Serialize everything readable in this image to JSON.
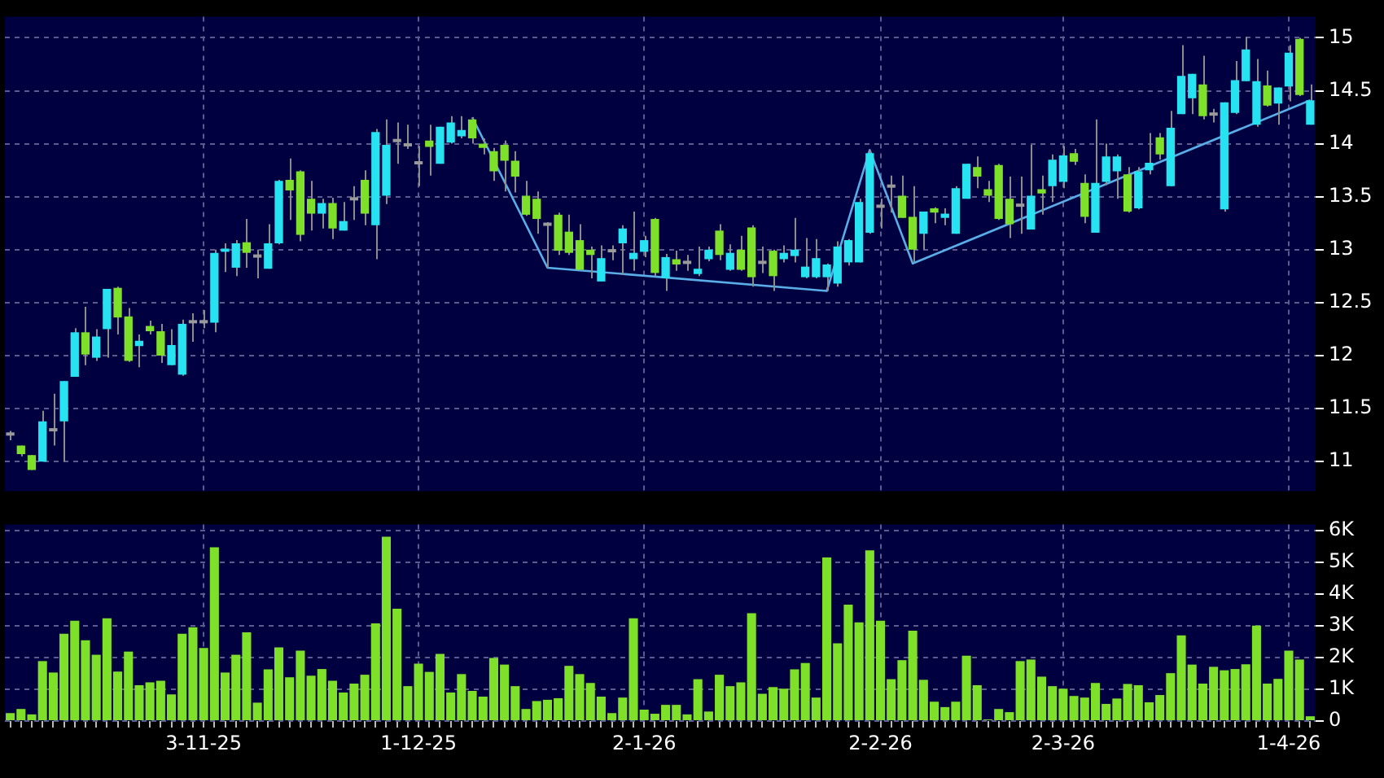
{
  "chart_data": [
    {
      "type": "candlestick",
      "categories": [
        null,
        null,
        null,
        null,
        null,
        null,
        null,
        null,
        null,
        null,
        null,
        null,
        null,
        null,
        null,
        null,
        null,
        null,
        null,
        null,
        null,
        null,
        null,
        null,
        null,
        null,
        null,
        null,
        null,
        null,
        null,
        null,
        null,
        null,
        null,
        null,
        null,
        null,
        null,
        null,
        null,
        null,
        null,
        null,
        null,
        null,
        null,
        null,
        null,
        null,
        null,
        null,
        null,
        null,
        null,
        null,
        null,
        null,
        null,
        null,
        null,
        null,
        null,
        null,
        null,
        null,
        null,
        null,
        null,
        null,
        null,
        null,
        null,
        null,
        null,
        null,
        null,
        null,
        null,
        null,
        null,
        null,
        null,
        null,
        null,
        null,
        null,
        null,
        null,
        null,
        null,
        null,
        null,
        null,
        null,
        null,
        null,
        null,
        null,
        null,
        null,
        null,
        null,
        null,
        null,
        null,
        null,
        null,
        null,
        null,
        null,
        null,
        null,
        null,
        null,
        null,
        null,
        null,
        null,
        null,
        null,
        null
      ],
      "ohlc": [
        [
          11.26,
          11.29,
          11.2,
          11.26
        ],
        [
          11.15,
          11.15,
          11.05,
          11.07
        ],
        [
          11.06,
          11.06,
          10.92,
          10.92
        ],
        [
          11.0,
          11.48,
          11.0,
          11.38
        ],
        [
          11.3,
          11.64,
          11.15,
          11.3
        ],
        [
          11.38,
          11.76,
          11.0,
          11.76
        ],
        [
          11.8,
          12.26,
          11.8,
          12.22
        ],
        [
          12.22,
          12.46,
          11.91,
          12.01
        ],
        [
          11.98,
          12.25,
          11.95,
          12.18
        ],
        [
          12.25,
          12.63,
          11.98,
          12.63
        ],
        [
          12.64,
          12.65,
          12.2,
          12.36
        ],
        [
          12.37,
          12.45,
          11.94,
          11.95
        ],
        [
          12.09,
          12.2,
          11.89,
          12.14
        ],
        [
          12.28,
          12.33,
          12.2,
          12.23
        ],
        [
          12.23,
          12.3,
          11.93,
          12.0
        ],
        [
          11.91,
          12.25,
          11.91,
          12.1
        ],
        [
          11.82,
          12.34,
          11.81,
          12.3
        ],
        [
          12.32,
          12.4,
          12.13,
          12.32
        ],
        [
          12.32,
          12.43,
          12.26,
          12.32
        ],
        [
          12.31,
          13.0,
          12.22,
          12.97
        ],
        [
          12.98,
          13.06,
          12.79,
          13.01
        ],
        [
          12.83,
          13.09,
          12.75,
          13.06
        ],
        [
          13.07,
          13.29,
          12.83,
          12.97
        ],
        [
          12.94,
          13.0,
          12.73,
          12.94
        ],
        [
          12.82,
          13.24,
          12.82,
          13.06
        ],
        [
          13.06,
          13.66,
          13.05,
          13.65
        ],
        [
          13.66,
          13.86,
          13.28,
          13.56
        ],
        [
          13.74,
          13.75,
          13.08,
          13.14
        ],
        [
          13.48,
          13.65,
          13.18,
          13.34
        ],
        [
          13.34,
          13.48,
          13.2,
          13.44
        ],
        [
          13.44,
          13.49,
          13.1,
          13.2
        ],
        [
          13.18,
          13.45,
          13.18,
          13.27
        ],
        [
          13.48,
          13.6,
          13.28,
          13.48
        ],
        [
          13.66,
          13.75,
          13.23,
          13.34
        ],
        [
          13.23,
          14.14,
          12.91,
          14.11
        ],
        [
          13.51,
          14.23,
          13.43,
          13.99
        ],
        [
          14.03,
          14.2,
          13.81,
          14.03
        ],
        [
          13.99,
          14.18,
          13.95,
          13.99
        ],
        [
          13.82,
          13.98,
          13.6,
          13.82
        ],
        [
          14.03,
          14.18,
          13.7,
          13.97
        ],
        [
          13.81,
          14.16,
          13.81,
          14.16
        ],
        [
          14.01,
          14.26,
          14.0,
          14.2
        ],
        [
          14.07,
          14.26,
          14.05,
          14.13
        ],
        [
          14.23,
          14.25,
          14.0,
          14.05
        ],
        [
          14.0,
          14.05,
          13.9,
          13.96
        ],
        [
          13.93,
          13.96,
          13.65,
          13.74
        ],
        [
          13.99,
          14.03,
          13.55,
          13.84
        ],
        [
          13.84,
          13.93,
          13.54,
          13.69
        ],
        [
          13.51,
          13.65,
          13.32,
          13.33
        ],
        [
          13.48,
          13.55,
          13.15,
          13.29
        ],
        [
          13.24,
          13.26,
          12.83,
          13.24
        ],
        [
          13.33,
          13.35,
          12.95,
          12.99
        ],
        [
          13.17,
          13.33,
          12.95,
          12.97
        ],
        [
          13.09,
          13.24,
          12.81,
          12.81
        ],
        [
          13.0,
          13.03,
          12.73,
          12.95
        ],
        [
          12.7,
          13.04,
          12.7,
          12.92
        ],
        [
          12.99,
          13.04,
          12.9,
          12.99
        ],
        [
          13.06,
          13.23,
          12.76,
          13.2
        ],
        [
          12.91,
          13.36,
          12.8,
          12.97
        ],
        [
          12.98,
          13.13,
          12.93,
          13.09
        ],
        [
          13.29,
          13.3,
          12.75,
          12.78
        ],
        [
          12.73,
          12.96,
          12.61,
          12.93
        ],
        [
          12.91,
          12.99,
          12.8,
          12.86
        ],
        [
          12.88,
          12.95,
          12.8,
          12.88
        ],
        [
          12.77,
          13.03,
          12.75,
          12.82
        ],
        [
          12.91,
          13.03,
          12.89,
          13.0
        ],
        [
          13.18,
          13.24,
          12.9,
          12.95
        ],
        [
          12.81,
          13.05,
          12.8,
          12.97
        ],
        [
          13.0,
          13.13,
          12.8,
          12.81
        ],
        [
          13.21,
          13.23,
          12.65,
          12.74
        ],
        [
          12.88,
          13.03,
          12.78,
          12.88
        ],
        [
          12.99,
          13.0,
          12.61,
          12.75
        ],
        [
          12.91,
          13.04,
          12.88,
          12.97
        ],
        [
          12.94,
          13.3,
          12.88,
          13.0
        ],
        [
          12.74,
          13.11,
          12.73,
          12.84
        ],
        [
          12.74,
          13.1,
          12.73,
          12.92
        ],
        [
          12.74,
          12.87,
          12.61,
          12.86
        ],
        [
          12.68,
          13.08,
          12.65,
          13.03
        ],
        [
          12.88,
          13.1,
          12.85,
          13.09
        ],
        [
          12.88,
          13.48,
          12.88,
          13.45
        ],
        [
          13.16,
          13.94,
          13.15,
          13.91
        ],
        [
          13.41,
          13.48,
          13.2,
          13.41
        ],
        [
          13.6,
          13.7,
          13.35,
          13.6
        ],
        [
          13.51,
          13.7,
          13.3,
          13.3
        ],
        [
          13.31,
          13.6,
          12.88,
          13.0
        ],
        [
          13.15,
          13.36,
          13.0,
          13.36
        ],
        [
          13.39,
          13.4,
          13.25,
          13.35
        ],
        [
          13.3,
          13.39,
          13.23,
          13.34
        ],
        [
          13.15,
          13.6,
          13.15,
          13.58
        ],
        [
          13.48,
          13.81,
          13.48,
          13.81
        ],
        [
          13.78,
          13.88,
          13.58,
          13.69
        ],
        [
          13.57,
          13.65,
          13.45,
          13.51
        ],
        [
          13.8,
          13.81,
          13.28,
          13.29
        ],
        [
          13.48,
          13.69,
          13.11,
          13.24
        ],
        [
          13.42,
          13.69,
          13.15,
          13.42
        ],
        [
          13.19,
          13.99,
          13.19,
          13.51
        ],
        [
          13.57,
          13.7,
          13.33,
          13.53
        ],
        [
          13.6,
          13.9,
          13.45,
          13.85
        ],
        [
          13.64,
          13.98,
          13.58,
          13.89
        ],
        [
          13.91,
          13.95,
          13.8,
          13.83
        ],
        [
          13.63,
          13.71,
          13.25,
          13.31
        ],
        [
          13.16,
          14.23,
          13.16,
          13.63
        ],
        [
          13.64,
          14.0,
          13.61,
          13.88
        ],
        [
          13.74,
          13.9,
          13.48,
          13.88
        ],
        [
          13.71,
          13.78,
          13.35,
          13.36
        ],
        [
          13.39,
          13.78,
          13.38,
          13.74
        ],
        [
          13.75,
          14.1,
          13.71,
          13.82
        ],
        [
          14.06,
          14.1,
          13.85,
          13.9
        ],
        [
          13.6,
          14.31,
          13.6,
          14.15
        ],
        [
          14.28,
          14.93,
          14.28,
          14.64
        ],
        [
          14.43,
          14.66,
          14.28,
          14.66
        ],
        [
          14.56,
          14.83,
          14.23,
          14.26
        ],
        [
          14.28,
          14.33,
          14.2,
          14.28
        ],
        [
          13.38,
          14.39,
          13.36,
          14.39
        ],
        [
          14.29,
          14.78,
          14.28,
          14.6
        ],
        [
          14.59,
          15.01,
          14.59,
          14.89
        ],
        [
          14.18,
          14.8,
          14.16,
          14.59
        ],
        [
          14.55,
          14.69,
          14.35,
          14.36
        ],
        [
          14.38,
          14.53,
          14.18,
          14.53
        ],
        [
          14.54,
          14.93,
          14.4,
          14.86
        ],
        [
          14.99,
          15.0,
          14.45,
          14.46
        ],
        [
          14.18,
          14.56,
          14.18,
          14.41
        ]
      ],
      "colors": [
        "#9a9a9a",
        "#7fe02a",
        "#7fe02a",
        "#27e3f2",
        "#9a9a9a",
        "#27e3f2",
        "#27e3f2",
        "#7fe02a",
        "#27e3f2",
        "#27e3f2",
        "#7fe02a",
        "#7fe02a",
        "#27e3f2",
        "#7fe02a",
        "#7fe02a",
        "#27e3f2",
        "#27e3f2",
        "#9a9a9a",
        "#9a9a9a",
        "#27e3f2",
        "#27e3f2",
        "#27e3f2",
        "#7fe02a",
        "#9a9a9a",
        "#27e3f2",
        "#27e3f2",
        "#7fe02a",
        "#7fe02a",
        "#7fe02a",
        "#27e3f2",
        "#7fe02a",
        "#27e3f2",
        "#9a9a9a",
        "#7fe02a",
        "#27e3f2",
        "#27e3f2",
        "#9a9a9a",
        "#9a9a9a",
        "#9a9a9a",
        "#7fe02a",
        "#27e3f2",
        "#27e3f2",
        "#27e3f2",
        "#7fe02a",
        "#7fe02a",
        "#7fe02a",
        "#7fe02a",
        "#7fe02a",
        "#7fe02a",
        "#7fe02a",
        "#9a9a9a",
        "#7fe02a",
        "#7fe02a",
        "#7fe02a",
        "#7fe02a",
        "#27e3f2",
        "#9a9a9a",
        "#27e3f2",
        "#27e3f2",
        "#27e3f2",
        "#7fe02a",
        "#27e3f2",
        "#7fe02a",
        "#9a9a9a",
        "#27e3f2",
        "#27e3f2",
        "#7fe02a",
        "#27e3f2",
        "#7fe02a",
        "#7fe02a",
        "#9a9a9a",
        "#7fe02a",
        "#27e3f2",
        "#27e3f2",
        "#27e3f2",
        "#27e3f2",
        "#27e3f2",
        "#27e3f2",
        "#27e3f2",
        "#27e3f2",
        "#27e3f2",
        "#9a9a9a",
        "#9a9a9a",
        "#7fe02a",
        "#7fe02a",
        "#27e3f2",
        "#7fe02a",
        "#27e3f2",
        "#27e3f2",
        "#27e3f2",
        "#7fe02a",
        "#7fe02a",
        "#7fe02a",
        "#7fe02a",
        "#9a9a9a",
        "#27e3f2",
        "#7fe02a",
        "#27e3f2",
        "#27e3f2",
        "#7fe02a",
        "#7fe02a",
        "#27e3f2",
        "#27e3f2",
        "#27e3f2",
        "#7fe02a",
        "#27e3f2",
        "#27e3f2",
        "#7fe02a",
        "#27e3f2",
        "#27e3f2",
        "#27e3f2",
        "#7fe02a",
        "#9a9a9a",
        "#27e3f2",
        "#27e3f2",
        "#27e3f2",
        "#27e3f2",
        "#7fe02a",
        "#27e3f2",
        "#27e3f2",
        "#7fe02a",
        "#27e3f2"
      ],
      "series": [
        {
          "type": "line",
          "color": "#5aaee8",
          "values": [
            null,
            null,
            null,
            null,
            null,
            null,
            null,
            null,
            null,
            null,
            null,
            null,
            null,
            null,
            null,
            null,
            null,
            null,
            null,
            null,
            null,
            null,
            null,
            null,
            null,
            null,
            null,
            null,
            null,
            null,
            null,
            null,
            null,
            null,
            null,
            null,
            null,
            null,
            null,
            null,
            null,
            null,
            null,
            14.25,
            null,
            null,
            null,
            null,
            null,
            null,
            12.83,
            null,
            null,
            null,
            null,
            null,
            null,
            null,
            null,
            null,
            null,
            null,
            null,
            null,
            null,
            null,
            null,
            null,
            null,
            null,
            null,
            null,
            null,
            null,
            null,
            null,
            12.61,
            null,
            null,
            null,
            13.94,
            null,
            null,
            null,
            12.87,
            null,
            null,
            null,
            null,
            null,
            null,
            null,
            null,
            null,
            null,
            null,
            null,
            null,
            null,
            null,
            null,
            null,
            null,
            null,
            null,
            null,
            null,
            null,
            null,
            null,
            null,
            null,
            null,
            null,
            null,
            null,
            null,
            null,
            null,
            null,
            null,
            14.41
          ]
        }
      ],
      "ylim": [
        10.72,
        15.2
      ],
      "yticks": [
        11,
        11.5,
        12,
        12.5,
        13,
        13.5,
        14,
        14.5,
        15
      ],
      "grid": true,
      "tick_labels": "y",
      "marker": "none"
    },
    {
      "type": "bar",
      "categories": [
        null,
        null,
        null,
        null,
        null,
        null,
        null,
        null,
        null,
        null,
        null,
        null,
        null,
        null,
        null,
        null,
        null,
        null,
        "3-11-25",
        null,
        null,
        null,
        null,
        null,
        null,
        null,
        null,
        null,
        null,
        null,
        null,
        null,
        null,
        null,
        null,
        null,
        null,
        null,
        "1-12-25",
        null,
        null,
        null,
        null,
        null,
        null,
        null,
        null,
        null,
        null,
        null,
        null,
        null,
        null,
        null,
        null,
        null,
        null,
        null,
        null,
        "2-1-26",
        null,
        null,
        null,
        null,
        null,
        null,
        null,
        null,
        null,
        null,
        null,
        null,
        null,
        null,
        null,
        null,
        null,
        null,
        null,
        null,
        null,
        "2-2-26",
        null,
        null,
        null,
        null,
        null,
        null,
        null,
        null,
        null,
        null,
        null,
        null,
        null,
        null,
        null,
        null,
        "2-3-26",
        null,
        null,
        null,
        null,
        null,
        null,
        null,
        null,
        null,
        null,
        null,
        null,
        null,
        null,
        null,
        null,
        null,
        null,
        null,
        null,
        "1-4-26",
        null,
        null
      ],
      "values": [
        250,
        380,
        210,
        1890,
        1530,
        2750,
        3160,
        2550,
        2090,
        3240,
        1560,
        2190,
        1130,
        1220,
        1270,
        840,
        2750,
        2960,
        2300,
        5480,
        1530,
        2090,
        2800,
        580,
        1630,
        2320,
        1380,
        2220,
        1430,
        1640,
        1270,
        900,
        1180,
        1460,
        3080,
        5810,
        3540,
        1100,
        1810,
        1550,
        2120,
        900,
        1480,
        950,
        770,
        1990,
        1780,
        1100,
        380,
        630,
        670,
        720,
        1740,
        1480,
        1200,
        770,
        250,
        740,
        3240,
        360,
        230,
        510,
        510,
        210,
        1320,
        300,
        1460,
        1100,
        1220,
        3400,
        860,
        1070,
        1020,
        1630,
        1830,
        740,
        5160,
        2450,
        3670,
        3110,
        5380,
        3160,
        1320,
        1920,
        2850,
        1300,
        610,
        440,
        610,
        2060,
        1130,
        50,
        380,
        280,
        1890,
        1940,
        1400,
        1100,
        1020,
        790,
        740,
        1200,
        540,
        710,
        1170,
        1130,
        590,
        820,
        1510,
        2700,
        1780,
        1180,
        1710,
        1600,
        1640,
        1790,
        3010,
        1180,
        1330,
        2220,
        1940,
        150
      ],
      "color": "#7fe02a",
      "ylim": [
        0,
        6200
      ],
      "yticks": [
        0,
        {
          "value": 1000,
          "label": "1K"
        },
        {
          "value": 2000,
          "label": "2K"
        },
        {
          "value": 3000,
          "label": "3K"
        },
        {
          "value": 4000,
          "label": "4K"
        },
        {
          "value": 5000,
          "label": "5K"
        },
        {
          "value": 6000,
          "label": "6K"
        }
      ],
      "grid": true
    }
  ]
}
